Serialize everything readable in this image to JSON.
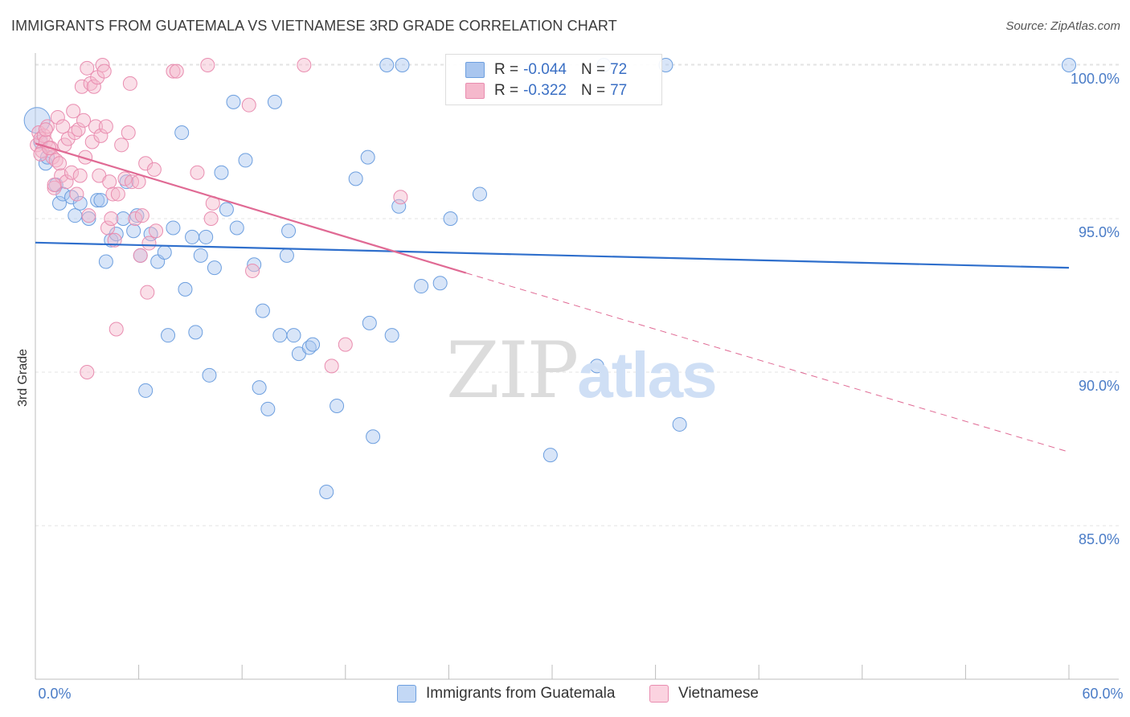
{
  "title": "IMMIGRANTS FROM GUATEMALA VS VIETNAMESE 3RD GRADE CORRELATION CHART",
  "source": "Source: ZipAtlas.com",
  "watermark": {
    "part1": "ZIP",
    "part2": "atlas"
  },
  "legend": {
    "guatemala": {
      "r_label": "R =",
      "r_value": "-0.044",
      "n_label": "N =",
      "n_value": "72",
      "color": "#a9c6ef"
    },
    "vietnamese": {
      "r_label": "R =",
      "r_value": "-0.322",
      "n_label": "N =",
      "n_value": "77",
      "color": "#f5b8cc"
    }
  },
  "bottom_legend": {
    "guatemala": "Immigrants from Guatemala",
    "vietnamese": "Vietnamese"
  },
  "chart_data": {
    "type": "scatter",
    "title": "IMMIGRANTS FROM GUATEMALA VS VIETNAMESE 3RD GRADE CORRELATION CHART",
    "ylabel": "3rd Grade",
    "xlabel": "",
    "xlim": [
      0,
      60
    ],
    "ylim": [
      80.5,
      100.8
    ],
    "x_tick_labels": [
      "0.0%",
      "60.0%"
    ],
    "y_ticks": [
      85,
      90,
      95,
      100
    ],
    "y_tick_labels": [
      "85.0%",
      "90.0%",
      "95.0%",
      "100.0%"
    ],
    "grid": true,
    "series": [
      {
        "name": "Immigrants from Guatemala",
        "color": "#a9c6ef",
        "stroke": "#6d9fdf",
        "trend": {
          "x": [
            0,
            60
          ],
          "y": [
            94.22,
            93.4
          ],
          "line_color": "#2f6fcc"
        },
        "points": [
          [
            0.1,
            98.2
          ],
          [
            0.6,
            96.8
          ],
          [
            0.7,
            97.0
          ],
          [
            1.2,
            96.1
          ],
          [
            1.4,
            95.5
          ],
          [
            1.6,
            95.8
          ],
          [
            2.1,
            95.7
          ],
          [
            2.3,
            95.1
          ],
          [
            2.6,
            95.5
          ],
          [
            3.1,
            95.0
          ],
          [
            3.6,
            95.6
          ],
          [
            3.8,
            95.6
          ],
          [
            4.1,
            93.6
          ],
          [
            4.4,
            94.3
          ],
          [
            4.7,
            94.5
          ],
          [
            5.1,
            95.0
          ],
          [
            5.3,
            96.2
          ],
          [
            5.7,
            94.6
          ],
          [
            5.9,
            95.1
          ],
          [
            6.1,
            93.8
          ],
          [
            6.4,
            89.4
          ],
          [
            6.7,
            94.5
          ],
          [
            7.1,
            93.6
          ],
          [
            7.5,
            93.9
          ],
          [
            7.7,
            91.2
          ],
          [
            8.0,
            94.7
          ],
          [
            8.5,
            97.8
          ],
          [
            8.7,
            92.7
          ],
          [
            9.1,
            94.4
          ],
          [
            9.3,
            91.3
          ],
          [
            9.6,
            93.8
          ],
          [
            9.9,
            94.4
          ],
          [
            10.1,
            89.9
          ],
          [
            10.4,
            93.4
          ],
          [
            10.8,
            96.5
          ],
          [
            11.1,
            95.3
          ],
          [
            11.5,
            98.8
          ],
          [
            11.7,
            94.7
          ],
          [
            12.2,
            96.9
          ],
          [
            12.7,
            93.5
          ],
          [
            13.0,
            89.5
          ],
          [
            13.2,
            92.0
          ],
          [
            13.5,
            88.8
          ],
          [
            13.9,
            98.8
          ],
          [
            14.2,
            91.2
          ],
          [
            14.6,
            93.8
          ],
          [
            14.7,
            94.6
          ],
          [
            15.0,
            91.2
          ],
          [
            15.3,
            90.6
          ],
          [
            15.9,
            90.8
          ],
          [
            16.1,
            90.9
          ],
          [
            16.9,
            86.1
          ],
          [
            17.5,
            88.9
          ],
          [
            18.6,
            96.3
          ],
          [
            19.3,
            97.0
          ],
          [
            19.4,
            91.6
          ],
          [
            19.6,
            87.9
          ],
          [
            20.4,
            100.0
          ],
          [
            20.7,
            91.2
          ],
          [
            21.1,
            95.4
          ],
          [
            21.3,
            100.0
          ],
          [
            22.4,
            92.8
          ],
          [
            23.5,
            92.9
          ],
          [
            24.1,
            95.0
          ],
          [
            25.8,
            95.8
          ],
          [
            29.9,
            87.3
          ],
          [
            32.6,
            90.2
          ],
          [
            33.0,
            100.0
          ],
          [
            36.6,
            100.0
          ],
          [
            37.4,
            88.3
          ],
          [
            60.0,
            100.0
          ],
          [
            0.3,
            97.5
          ]
        ]
      },
      {
        "name": "Vietnamese",
        "color": "#f5b8cc",
        "stroke": "#e98db0",
        "trend": {
          "x": [
            0,
            25
          ],
          "y": [
            97.45,
            93.23
          ],
          "line_color": "#e06a94",
          "dashed_extension": {
            "x": [
              25,
              60
            ],
            "y": [
              93.23,
              87.4
            ]
          }
        },
        "points": [
          [
            0.1,
            97.4
          ],
          [
            0.2,
            97.8
          ],
          [
            0.3,
            97.6
          ],
          [
            0.4,
            97.2
          ],
          [
            0.5,
            97.7
          ],
          [
            0.6,
            97.5
          ],
          [
            0.7,
            98.0
          ],
          [
            0.9,
            97.3
          ],
          [
            1.0,
            97.0
          ],
          [
            1.1,
            96.0
          ],
          [
            1.2,
            96.9
          ],
          [
            1.3,
            98.3
          ],
          [
            1.4,
            96.8
          ],
          [
            1.5,
            96.4
          ],
          [
            1.6,
            98.0
          ],
          [
            1.7,
            97.4
          ],
          [
            1.8,
            96.2
          ],
          [
            1.9,
            97.6
          ],
          [
            2.1,
            96.5
          ],
          [
            2.2,
            98.5
          ],
          [
            2.3,
            97.8
          ],
          [
            2.4,
            95.8
          ],
          [
            2.5,
            97.9
          ],
          [
            2.6,
            96.4
          ],
          [
            2.7,
            99.3
          ],
          [
            2.8,
            98.2
          ],
          [
            2.9,
            97.0
          ],
          [
            3.0,
            99.9
          ],
          [
            3.1,
            95.1
          ],
          [
            3.2,
            99.4
          ],
          [
            3.3,
            97.5
          ],
          [
            3.4,
            99.3
          ],
          [
            3.5,
            98.0
          ],
          [
            3.6,
            99.6
          ],
          [
            3.7,
            96.4
          ],
          [
            3.8,
            97.7
          ],
          [
            3.9,
            100.0
          ],
          [
            4.0,
            99.8
          ],
          [
            4.1,
            98.0
          ],
          [
            4.2,
            94.7
          ],
          [
            4.3,
            96.2
          ],
          [
            4.4,
            95.0
          ],
          [
            4.5,
            95.8
          ],
          [
            4.6,
            94.3
          ],
          [
            4.7,
            91.4
          ],
          [
            4.8,
            95.8
          ],
          [
            5.0,
            97.4
          ],
          [
            5.2,
            96.3
          ],
          [
            5.4,
            97.8
          ],
          [
            5.5,
            99.4
          ],
          [
            5.6,
            96.2
          ],
          [
            5.8,
            95.0
          ],
          [
            6.0,
            96.2
          ],
          [
            6.2,
            95.1
          ],
          [
            6.4,
            96.8
          ],
          [
            6.5,
            92.6
          ],
          [
            6.6,
            94.2
          ],
          [
            6.9,
            96.6
          ],
          [
            7.0,
            94.6
          ],
          [
            3.0,
            90.0
          ],
          [
            8.0,
            99.8
          ],
          [
            8.2,
            99.8
          ],
          [
            9.4,
            96.5
          ],
          [
            10.0,
            100.0
          ],
          [
            10.3,
            95.5
          ],
          [
            10.2,
            95.0
          ],
          [
            12.4,
            98.7
          ],
          [
            12.6,
            93.3
          ],
          [
            15.6,
            100.0
          ],
          [
            17.2,
            90.2
          ],
          [
            18.0,
            90.9
          ],
          [
            21.2,
            95.7
          ],
          [
            0.3,
            97.1
          ],
          [
            0.8,
            97.3
          ],
          [
            1.1,
            96.1
          ],
          [
            6.1,
            93.8
          ],
          [
            0.6,
            97.9
          ]
        ]
      }
    ]
  }
}
